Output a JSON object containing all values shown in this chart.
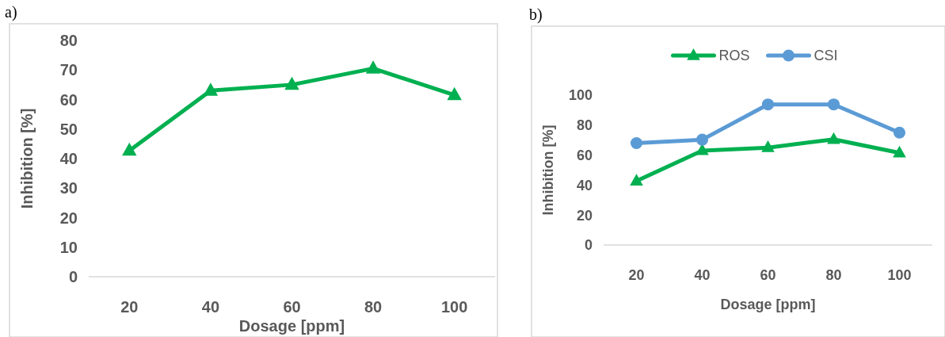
{
  "chart_data": [
    {
      "type": "line",
      "title": "a)",
      "xlabel": "Dosage [ppm]",
      "ylabel": "Inhibition [%]",
      "categories": [
        "20",
        "40",
        "60",
        "80",
        "100"
      ],
      "ylim": [
        0,
        80
      ],
      "yticks": [
        0,
        10,
        20,
        30,
        40,
        50,
        60,
        70,
        80
      ],
      "grid": false,
      "legend": false,
      "marker": "triangle",
      "line_style": "solid",
      "series": [
        {
          "color": "#00b050",
          "values": [
            42.7,
            63,
            65,
            70.5,
            61.5
          ]
        }
      ]
    },
    {
      "type": "line",
      "title": "b)",
      "xlabel": "Dosage [ppm]",
      "ylabel": "Inhibition [%]",
      "categories": [
        "20",
        "40",
        "60",
        "80",
        "100"
      ],
      "ylim": [
        0,
        100
      ],
      "yticks": [
        0,
        20,
        40,
        60,
        80,
        100
      ],
      "grid": false,
      "legend": "top",
      "line_style": "solid",
      "series": [
        {
          "name": "ROS",
          "color": "#00b050",
          "marker": "triangle",
          "values": [
            42.7,
            63,
            65,
            70.5,
            61.5
          ]
        },
        {
          "name": "CSI",
          "color": "#5b9bd5",
          "marker": "circle",
          "values": [
            68,
            70.3,
            93.8,
            93.8,
            75
          ]
        }
      ]
    }
  ]
}
